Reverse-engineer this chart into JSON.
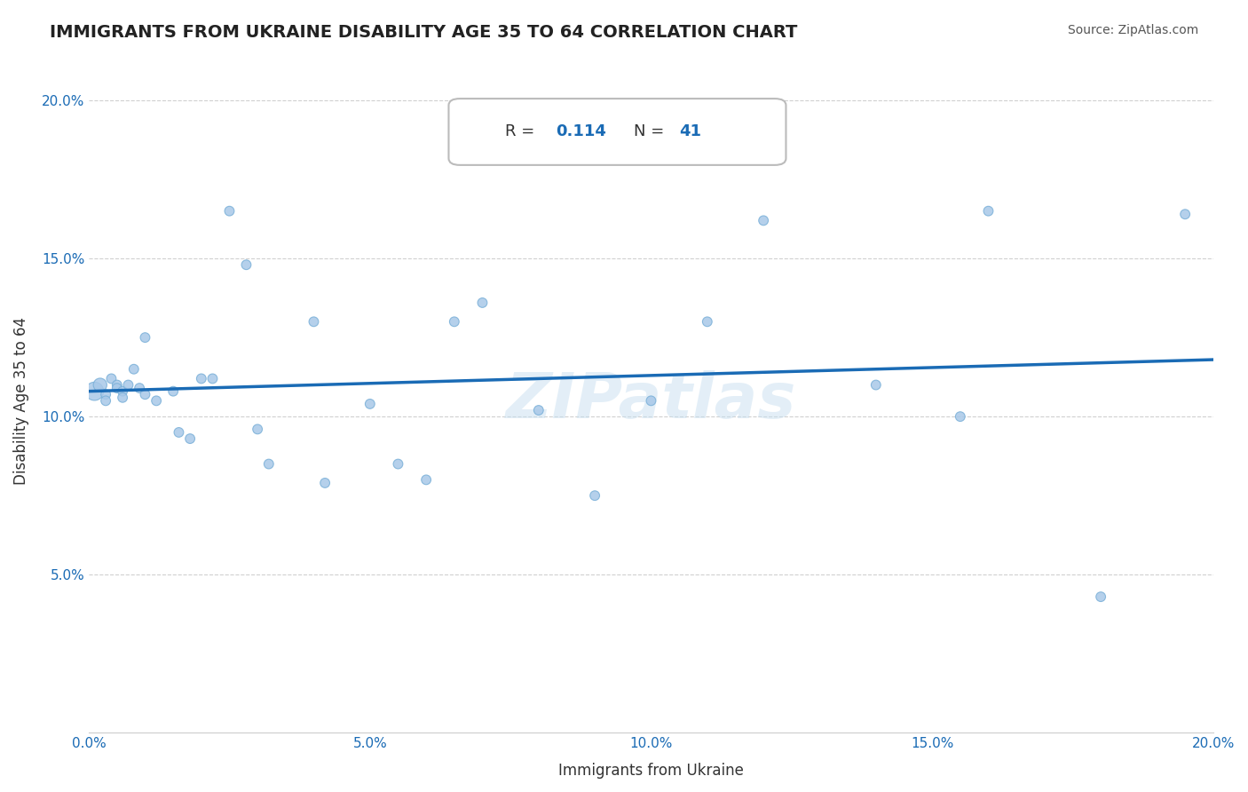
{
  "title": "IMMIGRANTS FROM UKRAINE DISABILITY AGE 35 TO 64 CORRELATION CHART",
  "source": "Source: ZipAtlas.com",
  "xlabel": "Immigrants from Ukraine",
  "ylabel": "Disability Age 35 to 64",
  "R": 0.114,
  "N": 41,
  "R_label": "R = 0.114",
  "N_label": "N = 41",
  "xlim": [
    0.0,
    0.2
  ],
  "ylim": [
    0.0,
    0.21
  ],
  "xticks": [
    0.0,
    0.05,
    0.1,
    0.15,
    0.2
  ],
  "yticks": [
    0.05,
    0.1,
    0.15,
    0.2
  ],
  "xtick_labels": [
    "0.0%",
    "5.0%",
    "10.0%",
    "15.0%",
    "20.0%"
  ],
  "ytick_labels": [
    "5.0%",
    "10.0%",
    "15.0%",
    "20.0%"
  ],
  "scatter_color": "#a8c8e8",
  "scatter_edge_color": "#7ab0d8",
  "line_color": "#1a6bb5",
  "watermark": "ZIPatlas",
  "scatter_x": [
    0.001,
    0.002,
    0.003,
    0.003,
    0.004,
    0.005,
    0.005,
    0.006,
    0.006,
    0.007,
    0.008,
    0.009,
    0.01,
    0.01,
    0.012,
    0.015,
    0.016,
    0.018,
    0.02,
    0.022,
    0.025,
    0.028,
    0.03,
    0.032,
    0.04,
    0.042,
    0.05,
    0.055,
    0.06,
    0.065,
    0.07,
    0.08,
    0.09,
    0.1,
    0.11,
    0.12,
    0.14,
    0.155,
    0.16,
    0.18,
    0.195
  ],
  "scatter_y": [
    0.108,
    0.11,
    0.107,
    0.105,
    0.112,
    0.11,
    0.109,
    0.108,
    0.106,
    0.11,
    0.115,
    0.109,
    0.125,
    0.107,
    0.105,
    0.108,
    0.095,
    0.093,
    0.112,
    0.112,
    0.165,
    0.148,
    0.096,
    0.085,
    0.13,
    0.079,
    0.104,
    0.085,
    0.08,
    0.13,
    0.136,
    0.102,
    0.075,
    0.105,
    0.13,
    0.162,
    0.11,
    0.1,
    0.165,
    0.043,
    0.164
  ],
  "scatter_sizes": [
    60,
    120,
    60,
    60,
    60,
    60,
    60,
    60,
    60,
    60,
    60,
    60,
    60,
    60,
    60,
    60,
    60,
    60,
    60,
    60,
    60,
    60,
    60,
    60,
    60,
    60,
    60,
    60,
    60,
    60,
    60,
    60,
    60,
    60,
    60,
    60,
    60,
    60,
    60,
    60,
    60
  ],
  "trend_x": [
    0.0,
    0.2
  ],
  "trend_y_start": 0.108,
  "trend_y_end": 0.118,
  "grid_color": "#d0d0d0",
  "background_color": "#ffffff",
  "title_color": "#222222",
  "title_fontsize": 14,
  "axis_label_fontsize": 12,
  "tick_fontsize": 11,
  "source_fontsize": 10,
  "source_color": "#555555"
}
